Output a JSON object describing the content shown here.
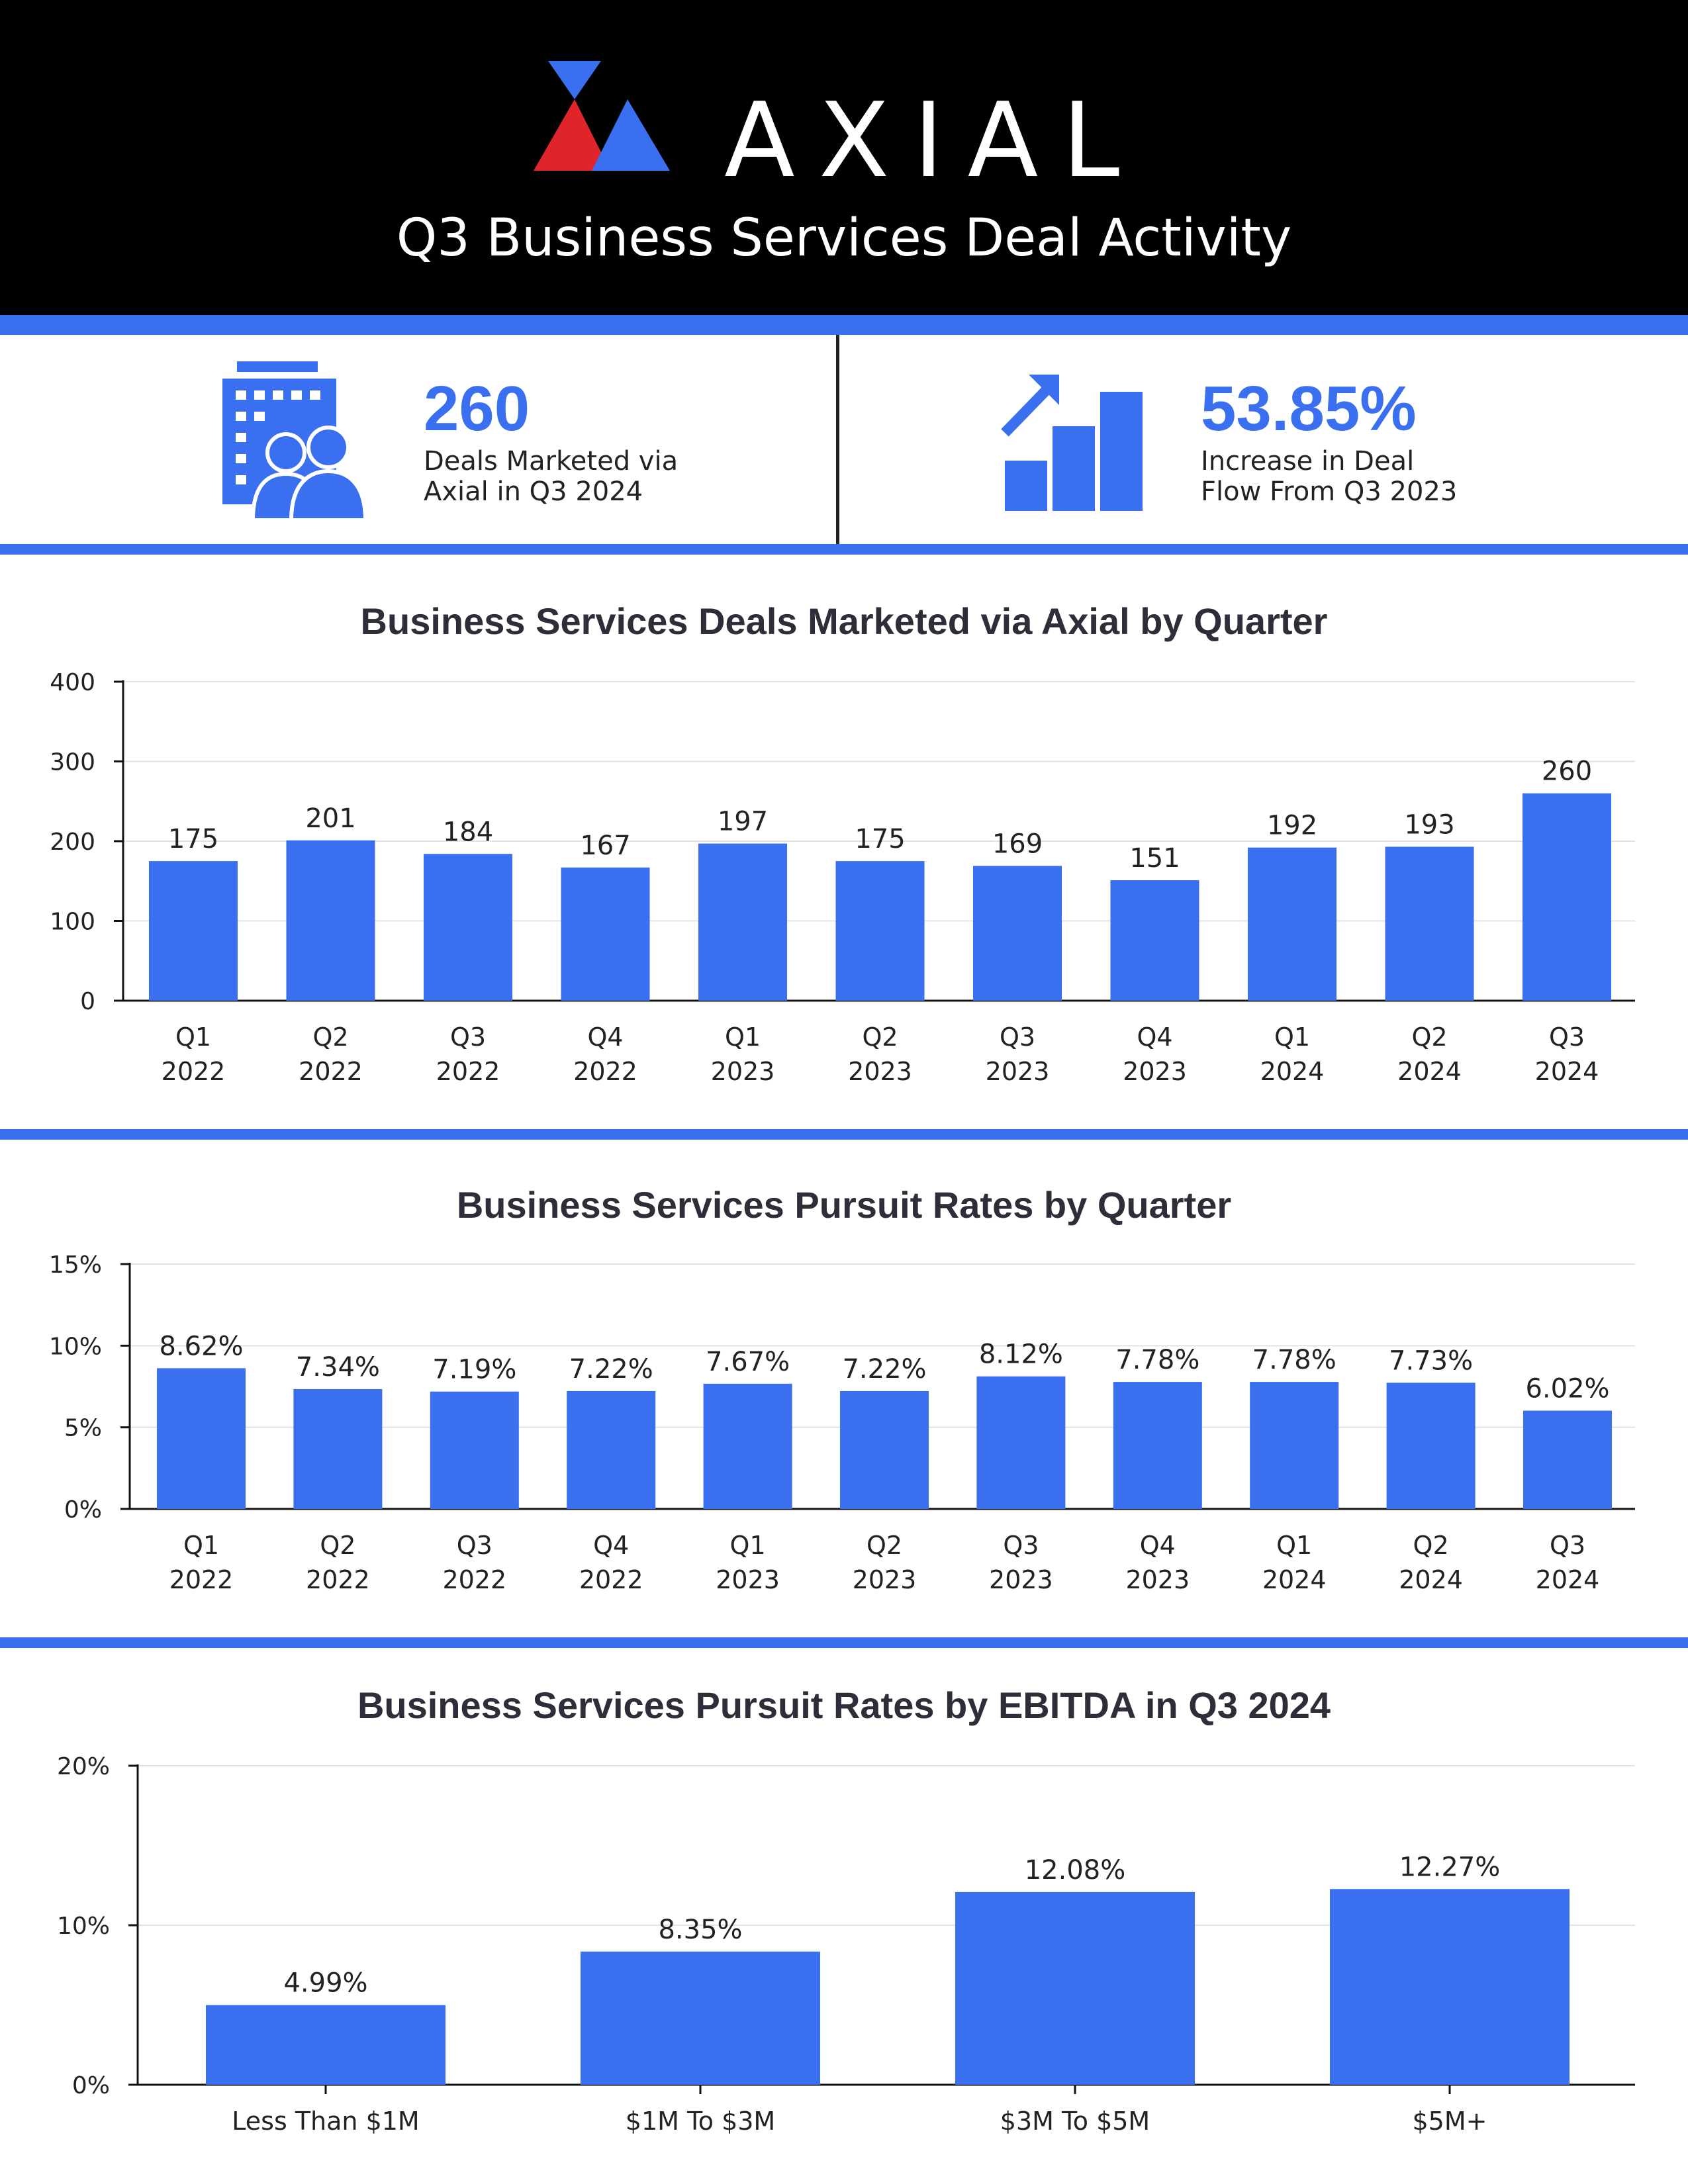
{
  "header": {
    "brand": "AXIAL",
    "title": "Q3 Business Services Deal Activity",
    "logo_colors": {
      "red": "#e0242c",
      "blue": "#3a6ff0"
    }
  },
  "stats": [
    {
      "icon": "office-building-people-icon",
      "value": "260",
      "label_line1": "Deals Marketed via",
      "label_line2": "Axial in Q3 2024"
    },
    {
      "icon": "growth-bar-chart-icon",
      "value": "53.85%",
      "label_line1": "Increase in Deal",
      "label_line2": "Flow From Q3 2023"
    }
  ],
  "colors": {
    "accent": "#3a6ff0",
    "bar": "#3a6ff0",
    "gridline": "#e3e3e3",
    "axis": "#111111"
  },
  "chart_data": [
    {
      "type": "bar",
      "title": "Business Services Deals Marketed via Axial by Quarter",
      "categories": [
        [
          "Q1",
          "2022"
        ],
        [
          "Q2",
          "2022"
        ],
        [
          "Q3",
          "2022"
        ],
        [
          "Q4",
          "2022"
        ],
        [
          "Q1",
          "2023"
        ],
        [
          "Q2",
          "2023"
        ],
        [
          "Q3",
          "2023"
        ],
        [
          "Q4",
          "2023"
        ],
        [
          "Q1",
          "2024"
        ],
        [
          "Q2",
          "2024"
        ],
        [
          "Q3",
          "2024"
        ]
      ],
      "values": [
        175,
        201,
        184,
        167,
        197,
        175,
        169,
        151,
        192,
        193,
        260
      ],
      "value_labels": [
        "175",
        "201",
        "184",
        "167",
        "197",
        "175",
        "169",
        "151",
        "192",
        "193",
        "260"
      ],
      "ylim": [
        0,
        400
      ],
      "yticks": [
        0,
        100,
        200,
        300,
        400
      ],
      "ytick_labels": [
        "0",
        "100",
        "200",
        "300",
        "400"
      ],
      "grid": true
    },
    {
      "type": "bar",
      "title": "Business Services Pursuit Rates by Quarter",
      "categories": [
        [
          "Q1",
          "2022"
        ],
        [
          "Q2",
          "2022"
        ],
        [
          "Q3",
          "2022"
        ],
        [
          "Q4",
          "2022"
        ],
        [
          "Q1",
          "2023"
        ],
        [
          "Q2",
          "2023"
        ],
        [
          "Q3",
          "2023"
        ],
        [
          "Q4",
          "2023"
        ],
        [
          "Q1",
          "2024"
        ],
        [
          "Q2",
          "2024"
        ],
        [
          "Q3",
          "2024"
        ]
      ],
      "values": [
        8.62,
        7.34,
        7.19,
        7.22,
        7.67,
        7.22,
        8.12,
        7.78,
        7.78,
        7.73,
        6.02
      ],
      "value_labels": [
        "8.62%",
        "7.34%",
        "7.19%",
        "7.22%",
        "7.67%",
        "7.22%",
        "8.12%",
        "7.78%",
        "7.78%",
        "7.73%",
        "6.02%"
      ],
      "ylim": [
        0,
        15
      ],
      "yticks": [
        0,
        5,
        10,
        15
      ],
      "ytick_labels": [
        "0%",
        "5%",
        "10%",
        "15%"
      ],
      "grid": true
    },
    {
      "type": "bar",
      "title": "Business Services Pursuit Rates by EBITDA in Q3 2024",
      "categories": [
        [
          "Less Than $1M"
        ],
        [
          "$1M To $3M"
        ],
        [
          "$3M To $5M"
        ],
        [
          "$5M+"
        ]
      ],
      "values": [
        4.99,
        8.35,
        12.08,
        12.27
      ],
      "value_labels": [
        "4.99%",
        "8.35%",
        "12.08%",
        "12.27%"
      ],
      "ylim": [
        0,
        20
      ],
      "yticks": [
        0,
        10,
        20
      ],
      "ytick_labels": [
        "0%",
        "10%",
        "20%"
      ],
      "grid": true
    }
  ]
}
